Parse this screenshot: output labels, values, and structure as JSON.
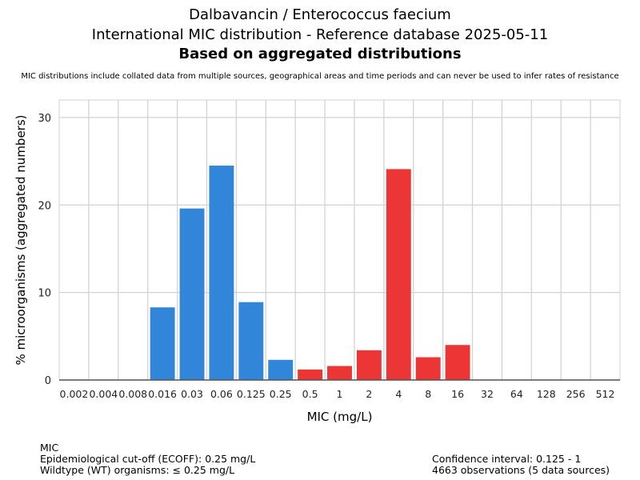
{
  "chart_data": {
    "type": "bar",
    "title": "Dalbavancin / Enterococcus faecium",
    "subtitle": "International MIC distribution - Reference database 2025-05-11",
    "subtitle2": "Based on aggregated distributions",
    "note": "MIC distributions include collated data from multiple sources, geographical areas and time periods and can never be used to infer rates of resistance",
    "xlabel": "MIC (mg/L)",
    "ylabel": "% microorganisms (aggregated numbers)",
    "ylim": [
      0,
      32
    ],
    "yticks": [
      0,
      10,
      20,
      30
    ],
    "grid": true,
    "categories": [
      "0.002",
      "0.004",
      "0.008",
      "0.016",
      "0.03",
      "0.06",
      "0.125",
      "0.25",
      "0.5",
      "1",
      "2",
      "4",
      "8",
      "16",
      "32",
      "64",
      "128",
      "256",
      "512"
    ],
    "values": [
      0,
      0,
      0,
      8.3,
      19.6,
      24.5,
      8.9,
      2.3,
      1.2,
      1.6,
      3.4,
      24.1,
      2.6,
      4.0,
      0,
      0,
      0,
      0,
      0
    ],
    "wildtype_categories": [
      "0.016",
      "0.03",
      "0.06",
      "0.125",
      "0.25"
    ],
    "colors": {
      "wildtype": "#3186da",
      "non_wildtype": "#ec3535"
    }
  },
  "footer": {
    "left": [
      "MIC",
      "Epidemiological cut-off (ECOFF): 0.25 mg/L",
      "Wildtype (WT) organisms: ≤ 0.25 mg/L"
    ],
    "right": [
      "Confidence interval: 0.125 - 1",
      "4663 observations (5 data sources)"
    ]
  }
}
